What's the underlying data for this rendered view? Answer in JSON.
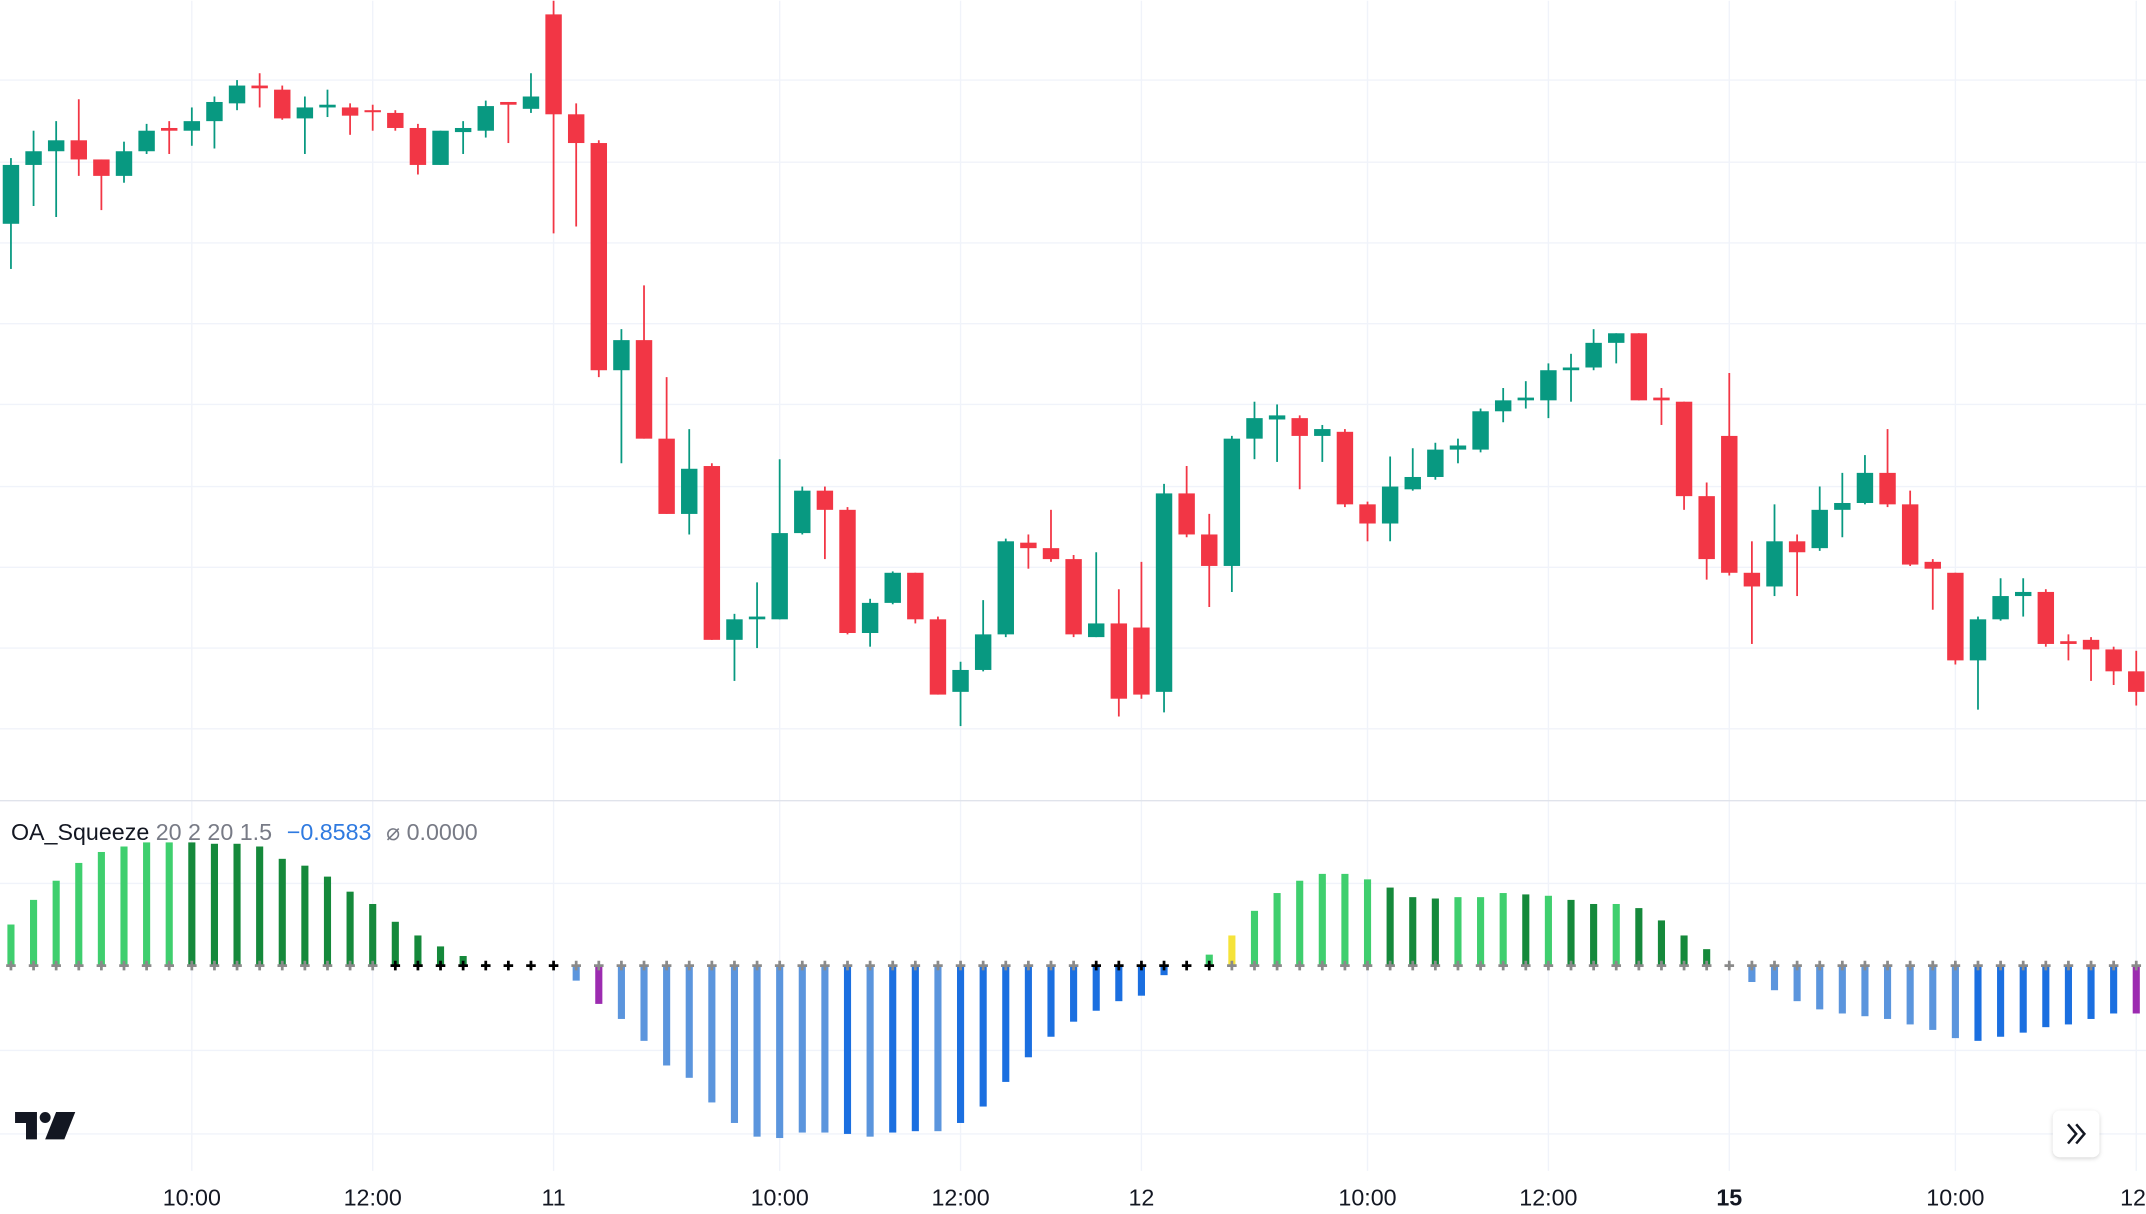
{
  "chart_data": [
    {
      "type": "candlestick",
      "up_color": "#089981",
      "down_color": "#f23645",
      "ylim": [
        0,
        585
      ],
      "categories": [
        null,
        null,
        null,
        null,
        null,
        null,
        null,
        null,
        "10:00",
        null,
        null,
        null,
        null,
        null,
        null,
        null,
        "12:00",
        null,
        null,
        null,
        null,
        null,
        null,
        null,
        "11",
        null,
        null,
        null,
        null,
        null,
        null,
        null,
        null,
        null,
        "10:00",
        null,
        null,
        null,
        null,
        null,
        null,
        null,
        "12:00",
        null,
        null,
        null,
        null,
        null,
        null,
        null,
        "12",
        null,
        null,
        null,
        null,
        null,
        null,
        null,
        null,
        null,
        "10:00",
        null,
        null,
        null,
        null,
        null,
        null,
        null,
        "12:00",
        null,
        null,
        null,
        null,
        null,
        null,
        null,
        "15",
        null,
        null,
        null,
        null,
        null,
        null,
        null,
        null,
        null,
        "10:00",
        null,
        null,
        null,
        null,
        null,
        null,
        null,
        "12:"
      ],
      "bold_labels": [
        76
      ],
      "candles": [
        [
          422,
          470,
          389,
          465
        ],
        [
          465,
          490,
          435,
          475
        ],
        [
          475,
          497,
          427,
          483
        ],
        [
          483,
          513,
          457,
          469
        ],
        [
          469,
          469,
          432,
          457
        ],
        [
          457,
          482,
          452,
          475
        ],
        [
          475,
          495,
          473,
          490
        ],
        [
          492,
          497,
          473,
          490
        ],
        [
          490,
          507,
          479,
          497
        ],
        [
          497,
          515,
          477,
          511
        ],
        [
          510,
          527,
          505,
          523
        ],
        [
          523,
          532,
          507,
          521
        ],
        [
          520,
          523,
          498,
          499
        ],
        [
          499,
          515,
          473,
          507
        ],
        [
          507,
          520,
          500,
          509
        ],
        [
          507,
          510,
          487,
          501
        ],
        [
          505,
          509,
          490,
          504
        ],
        [
          503,
          505,
          490,
          492
        ],
        [
          492,
          495,
          458,
          465
        ],
        [
          465,
          490,
          465,
          490
        ],
        [
          489,
          497,
          473,
          492
        ],
        [
          490,
          512,
          485,
          508
        ],
        [
          511,
          511,
          481,
          509
        ],
        [
          506,
          532,
          503,
          515
        ],
        [
          575,
          585,
          415,
          502
        ],
        [
          502,
          510,
          420,
          481
        ],
        [
          481,
          483,
          310,
          315
        ],
        [
          315,
          345,
          247,
          337
        ],
        [
          337,
          377,
          265,
          265
        ],
        [
          265,
          310,
          210,
          210
        ],
        [
          210,
          272,
          195,
          243
        ],
        [
          245,
          247,
          118,
          118
        ],
        [
          118,
          137,
          88,
          133
        ],
        [
          133,
          160,
          112,
          135
        ],
        [
          133,
          250,
          133,
          196
        ],
        [
          196,
          230,
          195,
          227
        ],
        [
          227,
          230,
          177,
          213
        ],
        [
          213,
          215,
          122,
          123
        ],
        [
          123,
          148,
          113,
          145
        ],
        [
          145,
          168,
          144,
          167
        ],
        [
          167,
          167,
          130,
          133
        ],
        [
          133,
          135,
          78,
          78
        ],
        [
          80,
          102,
          55,
          96
        ],
        [
          96,
          147,
          95,
          122
        ],
        [
          122,
          192,
          120,
          190
        ],
        [
          189,
          195,
          170,
          185
        ],
        [
          185,
          213,
          175,
          177
        ],
        [
          177,
          180,
          120,
          122
        ],
        [
          120,
          182,
          120,
          130
        ],
        [
          130,
          155,
          62,
          75
        ],
        [
          127,
          175,
          75,
          78
        ],
        [
          80,
          232,
          65,
          225
        ],
        [
          225,
          245,
          193,
          195
        ],
        [
          195,
          210,
          142,
          172
        ],
        [
          172,
          267,
          153,
          265
        ],
        [
          265,
          292,
          250,
          280
        ],
        [
          279,
          290,
          248,
          282
        ],
        [
          280,
          282,
          228,
          267
        ],
        [
          267,
          275,
          248,
          272
        ],
        [
          270,
          272,
          215,
          217
        ],
        [
          217,
          219,
          190,
          203
        ],
        [
          203,
          252,
          190,
          230
        ],
        [
          228,
          258,
          227,
          237
        ],
        [
          237,
          262,
          235,
          257
        ],
        [
          257,
          265,
          247,
          260
        ],
        [
          257,
          287,
          255,
          285
        ],
        [
          285,
          302,
          277,
          293
        ],
        [
          293,
          307,
          287,
          295
        ],
        [
          293,
          320,
          280,
          315
        ],
        [
          315,
          327,
          292,
          317
        ],
        [
          317,
          345,
          315,
          335
        ],
        [
          335,
          342,
          320,
          342
        ],
        [
          342,
          342,
          293,
          293
        ],
        [
          295,
          302,
          275,
          293
        ],
        [
          292,
          292,
          213,
          223
        ],
        [
          223,
          233,
          162,
          177
        ],
        [
          267,
          313,
          165,
          167
        ],
        [
          167,
          190,
          115,
          157
        ],
        [
          157,
          217,
          150,
          190
        ],
        [
          190,
          195,
          150,
          182
        ],
        [
          185,
          230,
          183,
          213
        ],
        [
          213,
          240,
          193,
          218
        ],
        [
          218,
          253,
          217,
          240
        ],
        [
          240,
          272,
          215,
          217
        ],
        [
          217,
          227,
          172,
          173
        ],
        [
          175,
          177,
          140,
          170
        ],
        [
          167,
          167,
          100,
          103
        ],
        [
          103,
          135,
          67,
          133
        ],
        [
          133,
          163,
          132,
          150
        ],
        [
          150,
          163,
          135,
          153
        ],
        [
          153,
          155,
          113,
          115
        ],
        [
          117,
          122,
          103,
          115
        ],
        [
          118,
          120,
          88,
          111
        ],
        [
          111,
          113,
          85,
          95
        ],
        [
          95,
          110,
          70,
          80
        ]
      ]
    },
    {
      "type": "bar",
      "title": "OA_Squeeze",
      "subtitle": "20 2 20 1.5",
      "value_label": "−0.8583",
      "zero_symbol": "⌀",
      "zero_label": "0.0000",
      "ylim": [
        -150,
        120
      ],
      "values": [
        30,
        48,
        62,
        75,
        83,
        87,
        90,
        90,
        90,
        89,
        89,
        87,
        78,
        73,
        65,
        54,
        45,
        32,
        22,
        14,
        7,
        1,
        0,
        0,
        0,
        -11,
        -28,
        -39,
        -55,
        -73,
        -82,
        -100,
        -115,
        -125,
        -126,
        -122,
        -122,
        -123,
        -125,
        -122,
        -121,
        -121,
        -115,
        -103,
        -85,
        -67,
        -52,
        -41,
        -33,
        -26,
        -22,
        -7,
        0,
        8,
        22,
        40,
        53,
        62,
        67,
        67,
        63,
        57,
        50,
        49,
        50,
        50,
        53,
        52,
        51,
        48,
        45,
        45,
        42,
        33,
        22,
        12,
        0,
        -12,
        -18,
        -26,
        -32,
        -35,
        -37,
        -39,
        -43,
        -47,
        -53,
        -55,
        -52,
        -49,
        -45,
        -43,
        -39,
        -35,
        -35
      ],
      "colors": [
        "#3fcf6e",
        "#3fcf6e",
        "#3fcf6e",
        "#3fcf6e",
        "#3fcf6e",
        "#3fcf6e",
        "#3fcf6e",
        "#3fcf6e",
        "#15893b",
        "#15893b",
        "#15893b",
        "#15893b",
        "#15893b",
        "#15893b",
        "#15893b",
        "#15893b",
        "#15893b",
        "#15893b",
        "#15893b",
        "#15893b",
        "#15893b",
        "#15893b",
        "#15893b",
        "#15893b",
        "#15893b",
        "#5b95dd",
        "#9c2bb0",
        "#5b95dd",
        "#5b95dd",
        "#5b95dd",
        "#5b95dd",
        "#5b95dd",
        "#5b95dd",
        "#5b95dd",
        "#5b95dd",
        "#5b95dd",
        "#5b95dd",
        "#1b6fe0",
        "#5b95dd",
        "#1b6fe0",
        "#1b6fe0",
        "#5b95dd",
        "#1b6fe0",
        "#1b6fe0",
        "#1b6fe0",
        "#1b6fe0",
        "#1b6fe0",
        "#1b6fe0",
        "#1b6fe0",
        "#1b6fe0",
        "#1b6fe0",
        "#1b6fe0",
        "#1b6fe0",
        "#3fcf6e",
        "#f5e33a",
        "#3fcf6e",
        "#3fcf6e",
        "#3fcf6e",
        "#3fcf6e",
        "#3fcf6e",
        "#3fcf6e",
        "#15893b",
        "#15893b",
        "#15893b",
        "#3fcf6e",
        "#3fcf6e",
        "#3fcf6e",
        "#15893b",
        "#3fcf6e",
        "#15893b",
        "#15893b",
        "#3fcf6e",
        "#15893b",
        "#15893b",
        "#15893b",
        "#15893b",
        "#15893b",
        "#5b95dd",
        "#5b95dd",
        "#5b95dd",
        "#5b95dd",
        "#5b95dd",
        "#5b95dd",
        "#5b95dd",
        "#5b95dd",
        "#5b95dd",
        "#5b95dd",
        "#1b6fe0",
        "#1b6fe0",
        "#1b6fe0",
        "#1b6fe0",
        "#1b6fe0",
        "#1b6fe0",
        "#1b6fe0",
        "#9c2bb0"
      ],
      "cross_colors": [
        "#8a8a8a",
        "#8a8a8a",
        "#8a8a8a",
        "#8a8a8a",
        "#8a8a8a",
        "#8a8a8a",
        "#8a8a8a",
        "#8a8a8a",
        "#8a8a8a",
        "#8a8a8a",
        "#8a8a8a",
        "#8a8a8a",
        "#8a8a8a",
        "#8a8a8a",
        "#8a8a8a",
        "#8a8a8a",
        "#8a8a8a",
        "#000000",
        "#000000",
        "#000000",
        "#000000",
        "#000000",
        "#000000",
        "#000000",
        "#000000",
        "#8a8a8a",
        "#8a8a8a",
        "#8a8a8a",
        "#8a8a8a",
        "#8a8a8a",
        "#8a8a8a",
        "#8a8a8a",
        "#8a8a8a",
        "#8a8a8a",
        "#8a8a8a",
        "#8a8a8a",
        "#8a8a8a",
        "#8a8a8a",
        "#8a8a8a",
        "#8a8a8a",
        "#8a8a8a",
        "#8a8a8a",
        "#8a8a8a",
        "#8a8a8a",
        "#8a8a8a",
        "#8a8a8a",
        "#8a8a8a",
        "#8a8a8a",
        "#000000",
        "#000000",
        "#000000",
        "#000000",
        "#000000",
        "#000000",
        "#8a8a8a",
        "#8a8a8a",
        "#8a8a8a",
        "#8a8a8a",
        "#8a8a8a",
        "#8a8a8a",
        "#8a8a8a",
        "#8a8a8a",
        "#8a8a8a",
        "#8a8a8a",
        "#8a8a8a",
        "#8a8a8a",
        "#8a8a8a",
        "#8a8a8a",
        "#8a8a8a",
        "#8a8a8a",
        "#8a8a8a",
        "#8a8a8a",
        "#8a8a8a",
        "#8a8a8a",
        "#8a8a8a",
        "#8a8a8a",
        "#8a8a8a",
        "#8a8a8a",
        "#8a8a8a",
        "#8a8a8a",
        "#8a8a8a",
        "#8a8a8a",
        "#8a8a8a",
        "#8a8a8a",
        "#8a8a8a",
        "#8a8a8a",
        "#8a8a8a",
        "#8a8a8a",
        "#8a8a8a",
        "#8a8a8a",
        "#8a8a8a",
        "#8a8a8a",
        "#8a8a8a",
        "#8a8a8a",
        "#8a8a8a"
      ]
    }
  ]
}
